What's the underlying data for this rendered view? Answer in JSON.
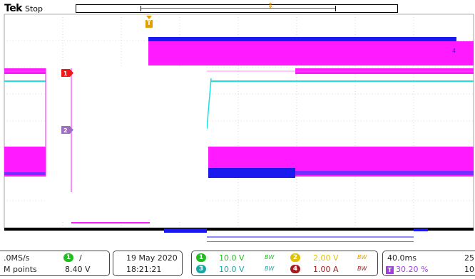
{
  "header": {
    "brand": "Tek",
    "acquisition_state": "Stop"
  },
  "icons": {
    "trigger_position": "trigger-position-marker",
    "record_marker": "record-position-marker",
    "channel1_marker": "channel-1-ground-marker",
    "channel2_marker": "channel-2-ground-marker",
    "channel4_marker": "channel-4-ground-marker"
  },
  "channel_markers": {
    "ch1": "1",
    "ch2": "2",
    "ch4": "4",
    "trigger": "T"
  },
  "colors": {
    "ch1": "#1fbf1f",
    "ch2": "#1ae0e0",
    "ch3": "#ff00ff",
    "ch4": "#1a1aee",
    "trigger": "#e0a000",
    "trigger_level_badge": "#a040e0"
  },
  "readout": {
    "acquisition": {
      "sample_rate": ".0MS/s",
      "record_length": "M points",
      "trigger_source": "1",
      "trigger_slope": "/",
      "trigger_level": "8.40 V"
    },
    "datetime": {
      "date": "19 May 2020",
      "time": "18:21:21"
    },
    "channels": [
      {
        "id": "1",
        "scale": "10.0 V",
        "bw": "BW"
      },
      {
        "id": "2",
        "scale": "2.00 V",
        "bw": "BW"
      },
      {
        "id": "3",
        "scale": "10.0 V",
        "bw": "BW"
      },
      {
        "id": "4",
        "scale": "1.00 A",
        "bw": "BW"
      }
    ],
    "timebase": {
      "scale": "40.0ms",
      "trigger_marker": "T",
      "trigger_position": "30.20 %",
      "sample_rate_prefix": "25",
      "record_prefix": "10"
    }
  }
}
